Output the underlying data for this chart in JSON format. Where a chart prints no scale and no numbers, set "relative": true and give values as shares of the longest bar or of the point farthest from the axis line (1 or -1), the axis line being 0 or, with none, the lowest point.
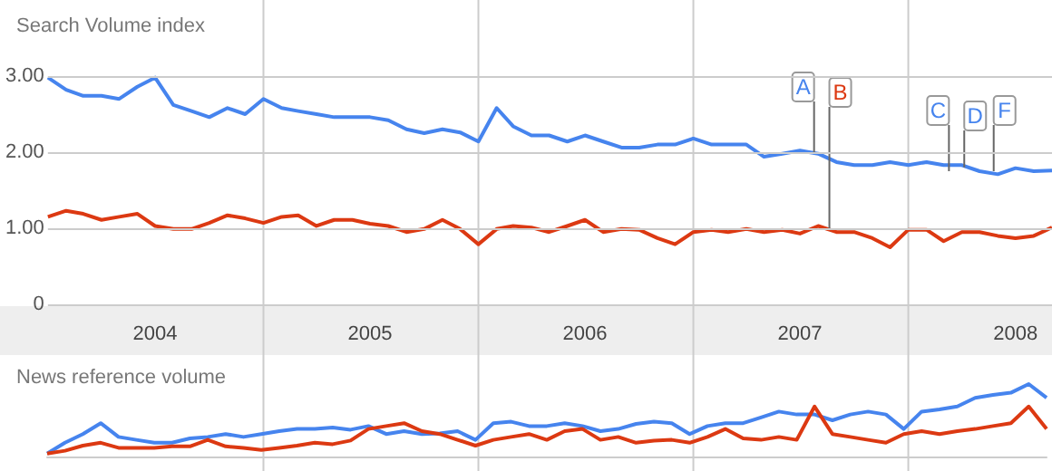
{
  "chart_data": [
    {
      "type": "line",
      "title": "Search Volume index",
      "x": [
        "2004-01",
        "2004-02",
        "2004-03",
        "2004-04",
        "2004-05",
        "2004-06",
        "2004-07",
        "2004-08",
        "2004-09",
        "2004-10",
        "2004-11",
        "2004-12",
        "2005-01",
        "2005-02",
        "2005-03",
        "2005-04",
        "2005-05",
        "2005-06",
        "2005-07",
        "2005-08",
        "2005-09",
        "2005-10",
        "2005-11",
        "2005-12",
        "2006-01",
        "2006-02",
        "2006-03",
        "2006-04",
        "2006-05",
        "2006-06",
        "2006-07",
        "2006-08",
        "2006-09",
        "2006-10",
        "2006-11",
        "2006-12",
        "2007-01",
        "2007-02",
        "2007-03",
        "2007-04",
        "2007-05",
        "2007-06",
        "2007-07",
        "2007-08",
        "2007-09",
        "2007-10",
        "2007-11",
        "2007-12",
        "2008-01",
        "2008-02",
        "2008-03",
        "2008-04",
        "2008-05",
        "2008-06",
        "2008-07",
        "2008-08",
        "2008-09"
      ],
      "series": [
        {
          "color": "#4684ee",
          "values": [
            2.98,
            2.82,
            2.74,
            2.74,
            2.7,
            2.86,
            2.98,
            2.62,
            2.54,
            2.46,
            2.58,
            2.5,
            2.7,
            2.58,
            2.54,
            2.5,
            2.46,
            2.46,
            2.46,
            2.42,
            2.3,
            2.25,
            2.3,
            2.26,
            2.14,
            2.58,
            2.34,
            2.22,
            2.22,
            2.14,
            2.22,
            2.14,
            2.06,
            2.06,
            2.1,
            2.1,
            2.18,
            2.1,
            2.1,
            2.1,
            1.94,
            1.98,
            2.02,
            1.98,
            1.87,
            1.83,
            1.83,
            1.87,
            1.83,
            1.87,
            1.83,
            1.83,
            1.75,
            1.71,
            1.79,
            1.75,
            1.76
          ]
        },
        {
          "color": "#dc3912",
          "values": [
            1.15,
            1.23,
            1.19,
            1.11,
            1.15,
            1.19,
            1.03,
            0.99,
            0.99,
            1.07,
            1.17,
            1.13,
            1.07,
            1.15,
            1.17,
            1.03,
            1.11,
            1.11,
            1.06,
            1.03,
            0.95,
            0.99,
            1.11,
            0.99,
            0.79,
            0.99,
            1.03,
            1.01,
            0.95,
            1.03,
            1.11,
            0.95,
            0.99,
            0.98,
            0.87,
            0.79,
            0.95,
            0.98,
            0.95,
            0.99,
            0.95,
            0.98,
            0.93,
            1.03,
            0.95,
            0.95,
            0.87,
            0.75,
            0.98,
            0.98,
            0.83,
            0.95,
            0.95,
            0.9,
            0.87,
            0.9,
            1.01
          ]
        }
      ],
      "xlim": [
        "2004-01",
        "2008-09"
      ],
      "xticks": [
        {
          "value": "2005-01",
          "label": null
        },
        {
          "value": "2006-01",
          "label": null
        },
        {
          "value": "2007-01",
          "label": null
        },
        {
          "value": "2008-01",
          "label": null
        },
        {
          "value": "2004-07",
          "label": "2004"
        },
        {
          "value": "2005-07",
          "label": "2005"
        },
        {
          "value": "2006-07",
          "label": "2006"
        },
        {
          "value": "2007-07",
          "label": "2007"
        },
        {
          "value": "2008-07",
          "label": "2008"
        }
      ],
      "ylim": [
        0,
        4
      ],
      "yticks": [
        0,
        {
          "value": 1,
          "label": "1.00"
        },
        {
          "value": 2,
          "label": "2.00"
        },
        {
          "value": 3,
          "label": "3.00"
        }
      ],
      "grid": true,
      "marker": "none",
      "line_style": "solid",
      "annotations": [
        {
          "text": "A",
          "x": "2007-07-25",
          "y": 2.0
        },
        {
          "text": "B",
          "x": "2007-08-20",
          "y": 1.0
        },
        {
          "text": "C",
          "x": "2008-03-10",
          "y": 1.75
        },
        {
          "text": "D",
          "x": "2008-04-05",
          "y": 1.8
        },
        {
          "text": "F",
          "x": "2008-05-25",
          "y": 1.75
        }
      ]
    },
    {
      "type": "line",
      "title": "News reference volume",
      "relative": true,
      "categories": [
        null,
        null,
        null,
        null,
        null,
        null,
        null,
        null,
        null,
        null,
        null,
        null,
        null,
        null,
        null,
        null,
        null,
        null,
        null,
        null,
        null,
        null,
        null,
        null,
        null,
        null,
        null,
        null,
        null,
        null,
        null,
        null,
        null,
        null,
        null,
        null,
        null,
        null,
        null,
        null,
        null,
        null,
        null,
        null,
        null,
        null,
        null,
        null,
        null,
        null,
        null,
        null,
        null,
        null,
        null,
        null,
        null
      ],
      "series": [
        {
          "color": "#4684ee",
          "values": [
            0.04,
            0.19,
            0.31,
            0.46,
            0.27,
            0.23,
            0.19,
            0.19,
            0.25,
            0.27,
            0.31,
            0.27,
            0.31,
            0.35,
            0.38,
            0.38,
            0.4,
            0.37,
            0.42,
            0.31,
            0.35,
            0.31,
            0.32,
            0.35,
            0.23,
            0.46,
            0.48,
            0.42,
            0.42,
            0.46,
            0.42,
            0.35,
            0.38,
            0.45,
            0.48,
            0.46,
            0.31,
            0.42,
            0.46,
            0.46,
            0.54,
            0.62,
            0.58,
            0.58,
            0.5,
            0.58,
            0.62,
            0.58,
            0.38,
            0.62,
            0.65,
            0.69,
            0.81,
            0.85,
            0.88,
            1,
            0.81
          ]
        },
        {
          "color": "#dc3912",
          "values": [
            0.04,
            0.08,
            0.15,
            0.19,
            0.12,
            0.12,
            0.12,
            0.14,
            0.14,
            0.23,
            0.14,
            0.12,
            0.09,
            0.12,
            0.15,
            0.19,
            0.17,
            0.22,
            0.38,
            0.42,
            0.46,
            0.35,
            0.31,
            0.23,
            0.15,
            0.23,
            0.27,
            0.31,
            0.23,
            0.35,
            0.38,
            0.23,
            0.27,
            0.19,
            0.22,
            0.23,
            0.19,
            0.27,
            0.38,
            0.25,
            0.23,
            0.27,
            0.23,
            0.69,
            0.31,
            0.27,
            0.23,
            0.19,
            0.31,
            0.35,
            0.31,
            0.35,
            0.38,
            0.42,
            0.46,
            0.69,
            0.38
          ]
        }
      ],
      "marker": "none",
      "line_style": "solid"
    }
  ]
}
